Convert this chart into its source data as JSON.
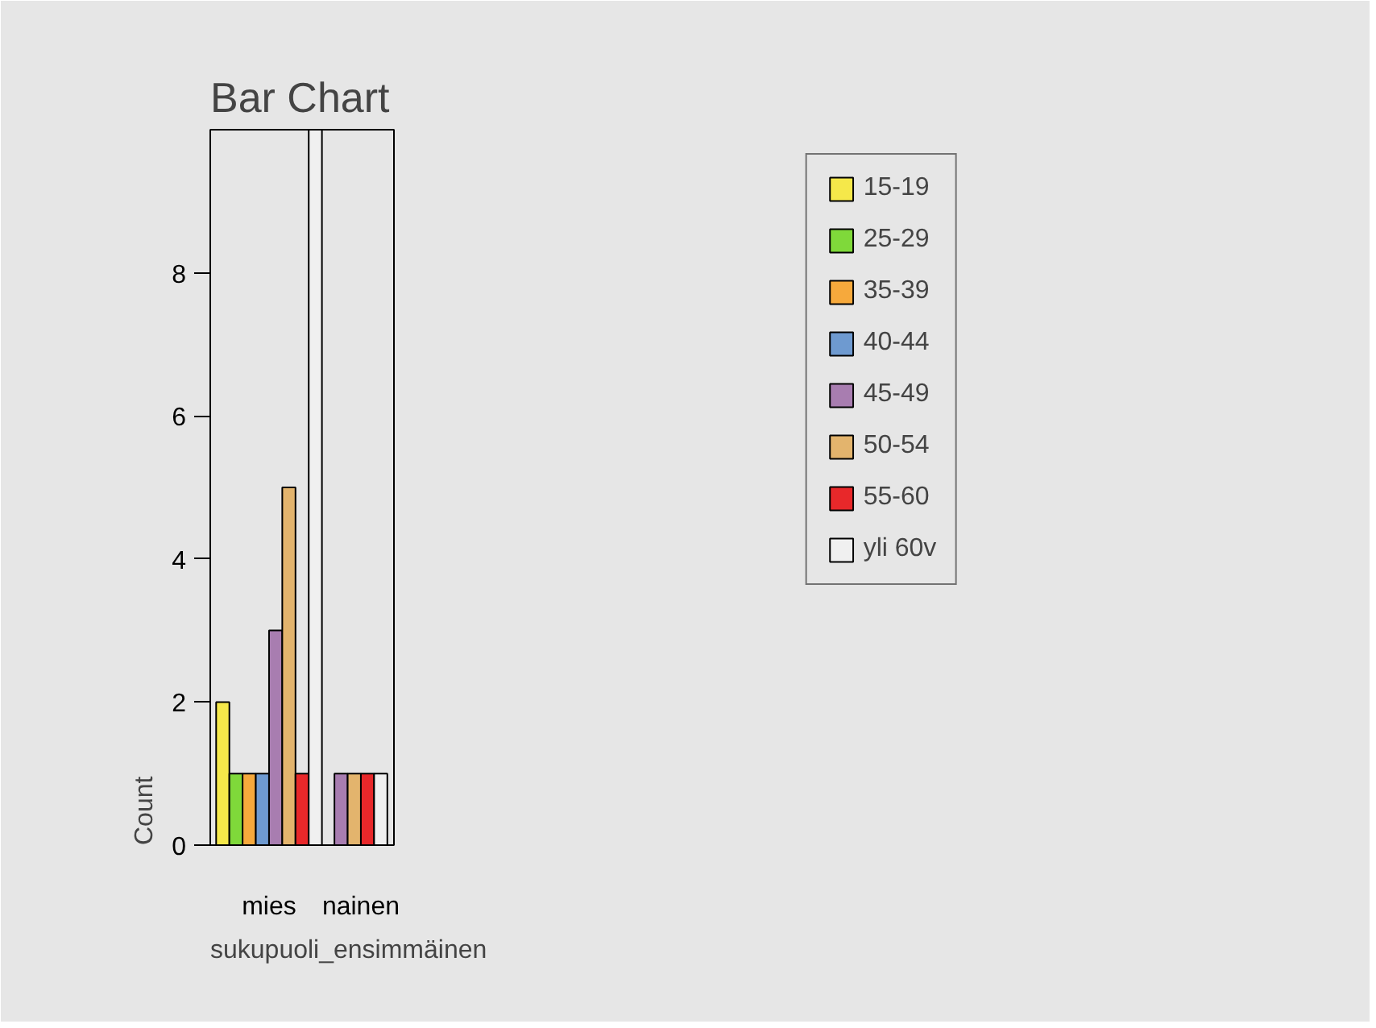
{
  "chart_data": {
    "type": "bar",
    "title": "Bar Chart",
    "xlabel": "sukupuoli_ensimmäinen",
    "ylabel": "Count",
    "categories": [
      "mies",
      "nainen"
    ],
    "series": [
      {
        "name": "15-19",
        "color": "#f5e84a",
        "values": [
          2,
          null
        ]
      },
      {
        "name": "25-29",
        "color": "#7fd93a",
        "values": [
          1,
          null
        ]
      },
      {
        "name": "35-39",
        "color": "#f6a93c",
        "values": [
          1,
          null
        ]
      },
      {
        "name": "40-44",
        "color": "#6e9ad0",
        "values": [
          1,
          null
        ]
      },
      {
        "name": "45-49",
        "color": "#a87db0",
        "values": [
          3,
          1
        ]
      },
      {
        "name": "50-54",
        "color": "#e3b46d",
        "values": [
          5,
          1
        ]
      },
      {
        "name": "55-60",
        "color": "#e8282a",
        "values": [
          1,
          1
        ]
      },
      {
        "name": "yli 60v",
        "color": "#f0f0f0",
        "values": [
          10,
          1
        ]
      }
    ],
    "ylim": [
      0,
      10
    ],
    "yticks": [
      0,
      2,
      4,
      6,
      8
    ],
    "grid": false,
    "legend": "top right"
  }
}
